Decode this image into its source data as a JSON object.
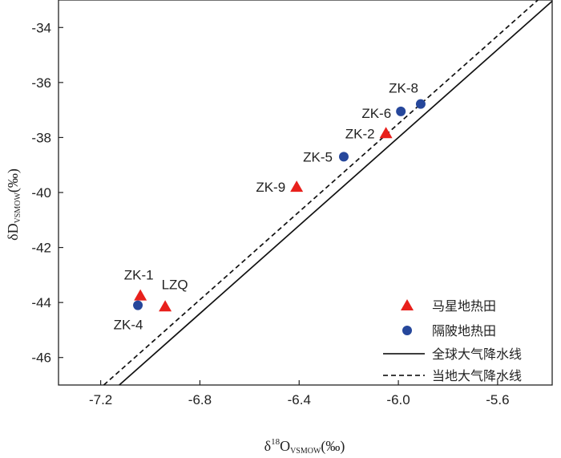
{
  "chart_data": {
    "type": "scatter",
    "title": "",
    "xlabel": {
      "prefix": "δ",
      "sup": "18",
      "main": "O",
      "sub": "VSMOW",
      "unit": "(‰)"
    },
    "ylabel": {
      "main": "δD",
      "sub": "VSMOW",
      "unit": "(‰)"
    },
    "xlim": [
      -7.37,
      -5.38
    ],
    "ylim": [
      -47.0,
      -33.0
    ],
    "x_ticks": [
      -7.2,
      -6.8,
      -6.4,
      -6.0,
      -5.6
    ],
    "x_tick_labels": [
      "-7.2",
      "-6.8",
      "-6.4",
      "-6.0",
      "-5.6"
    ],
    "y_ticks": [
      -34,
      -36,
      -38,
      -40,
      -42,
      -44,
      -46
    ],
    "y_tick_labels": [
      "-34",
      "-36",
      "-38",
      "-40",
      "-42",
      "-44",
      "-46"
    ],
    "grid": false,
    "legend_position": "bottom-right",
    "series": [
      {
        "name": "马星地热田",
        "marker": "triangle",
        "color": "#e8201c",
        "points": [
          {
            "label": "ZK-1",
            "x": -7.04,
            "y": -43.75
          },
          {
            "label": "LZQ",
            "x": -6.94,
            "y": -44.15
          },
          {
            "label": "ZK-9",
            "x": -6.41,
            "y": -39.8
          },
          {
            "label": "ZK-2",
            "x": -6.05,
            "y": -37.85
          }
        ]
      },
      {
        "name": "隔陂地热田",
        "marker": "circle",
        "color": "#26479b",
        "points": [
          {
            "label": "ZK-4",
            "x": -7.05,
            "y": -44.1
          },
          {
            "label": "ZK-5",
            "x": -6.22,
            "y": -38.7
          },
          {
            "label": "ZK-6",
            "x": -5.99,
            "y": -37.05
          },
          {
            "label": "ZK-8",
            "x": -5.91,
            "y": -36.78
          }
        ]
      }
    ],
    "lines": [
      {
        "name": "全球大气降水线",
        "style": "solid",
        "slope": 8,
        "intercept": 10
      },
      {
        "name": "当地大气降水线",
        "style": "dashed",
        "slope": 8,
        "intercept": 10.5
      }
    ]
  }
}
